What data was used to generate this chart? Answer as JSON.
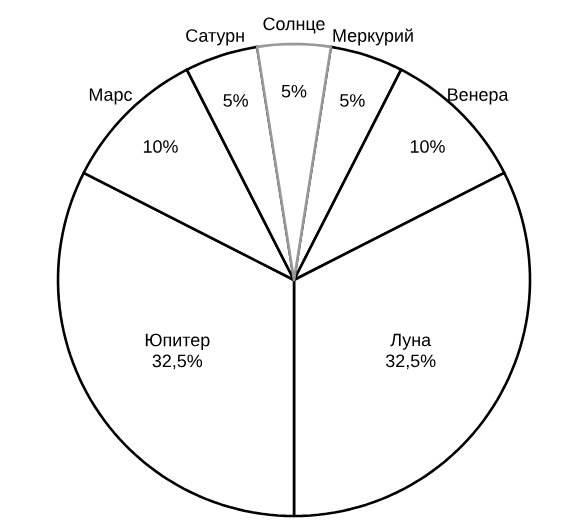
{
  "chart_data": {
    "type": "pie",
    "categories": [
      "Солнце",
      "Меркурий",
      "Венера",
      "Луна",
      "Юпитер",
      "Марс",
      "Сатурн"
    ],
    "values": [
      5,
      5,
      10,
      32.5,
      32.5,
      10,
      5
    ],
    "value_labels": [
      "5%",
      "5%",
      "10%",
      "32,5%",
      "32,5%",
      "10%",
      "5%"
    ],
    "colors": [
      "#999999",
      "#000000",
      "#000000",
      "#000000",
      "#000000",
      "#000000",
      "#000000"
    ]
  }
}
